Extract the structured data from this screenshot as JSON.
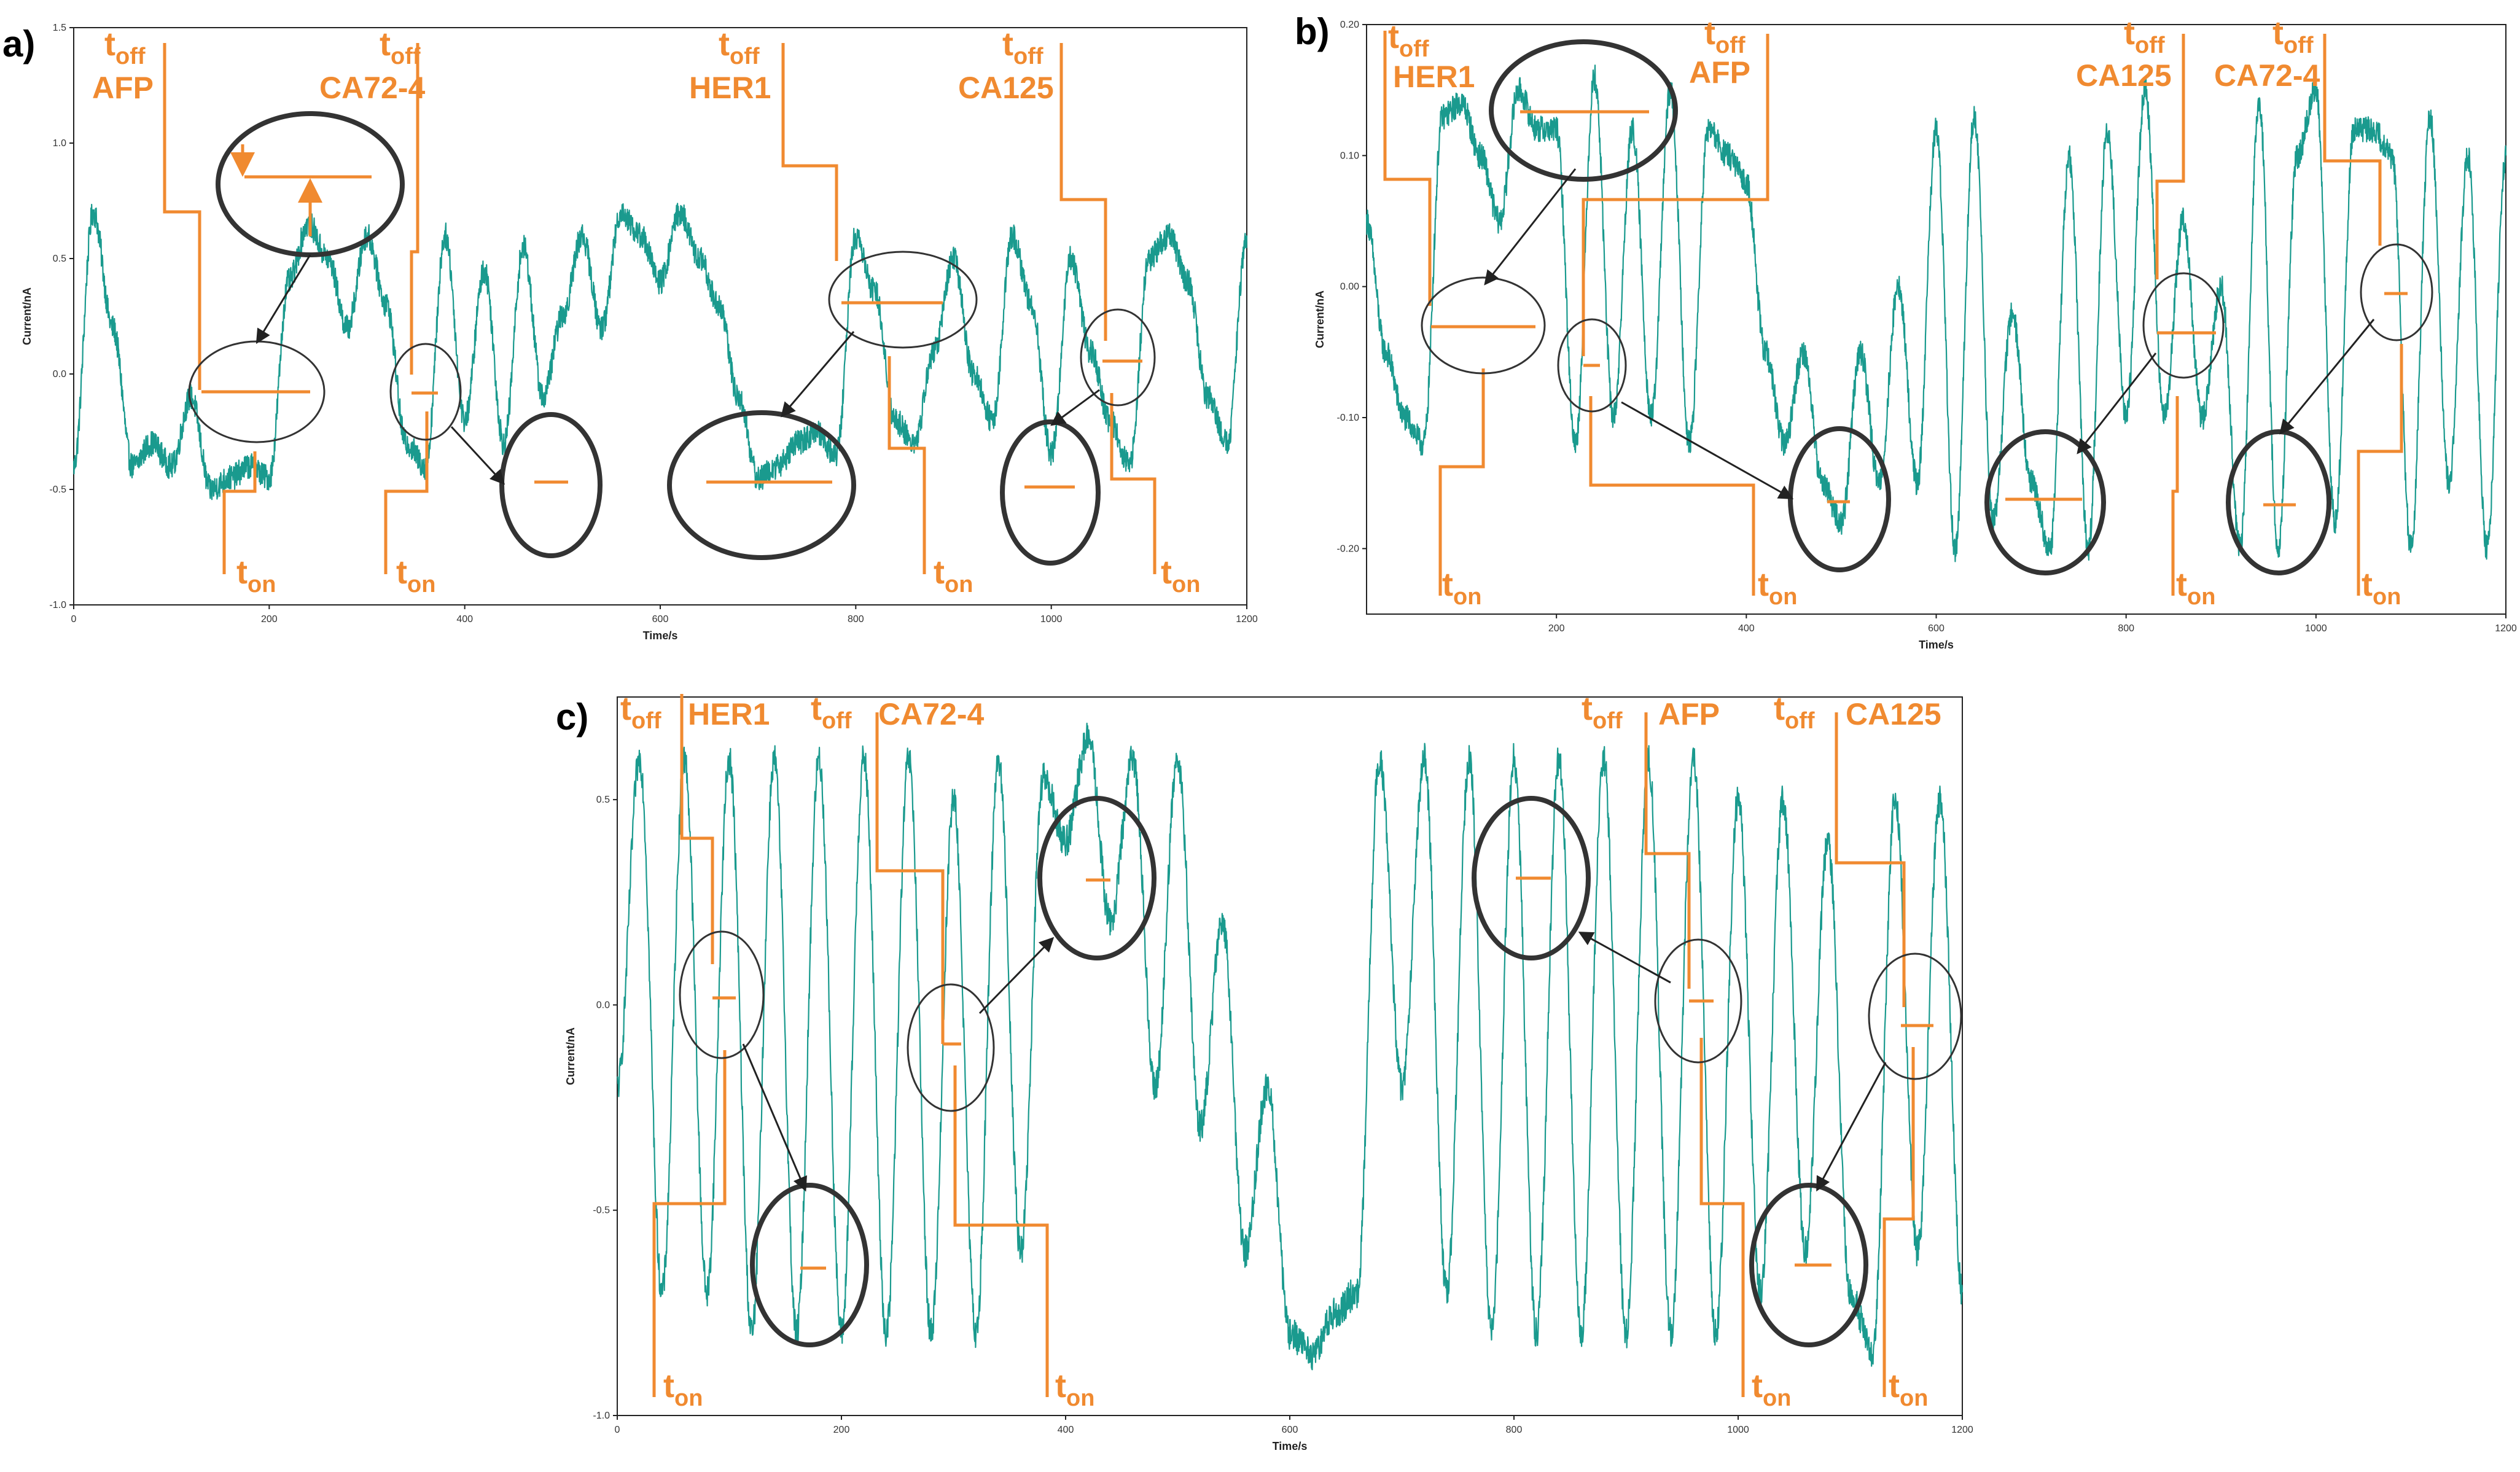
{
  "chart_data": [
    {
      "id": "a",
      "type": "line",
      "panel_label": "a)",
      "xlabel": "Time/s",
      "ylabel": "Current/nA",
      "xlim": [
        0,
        1200
      ],
      "ylim": [
        -1.0,
        1.5
      ],
      "xticks": [
        "0",
        "200",
        "400",
        "600",
        "800",
        "1000",
        "1200"
      ],
      "yticks": [
        "-1.0",
        "-0.5",
        "0.0",
        "0.5",
        "1.0",
        "1.5"
      ],
      "ytick_values": [
        -1.0,
        -0.5,
        0.0,
        0.5,
        1.0,
        1.5
      ],
      "xtick_values": [
        0,
        200,
        400,
        600,
        800,
        1000,
        1200
      ],
      "series": [
        {
          "name": "current",
          "color": "#1a9a8e",
          "x": [
            0,
            20,
            40,
            60,
            80,
            100,
            120,
            140,
            160,
            180,
            200,
            220,
            240,
            260,
            280,
            300,
            320,
            340,
            360,
            380,
            400,
            420,
            440,
            460,
            480,
            500,
            520,
            540,
            560,
            580,
            600,
            620,
            640,
            660,
            680,
            700,
            720,
            740,
            760,
            780,
            800,
            820,
            840,
            860,
            880,
            900,
            920,
            940,
            960,
            980,
            1000,
            1020,
            1040,
            1060,
            1080,
            1100,
            1120,
            1140,
            1160,
            1180,
            1200
          ],
          "y": [
            -0.4,
            0.7,
            0.2,
            -0.4,
            -0.3,
            -0.4,
            -0.1,
            -0.5,
            -0.45,
            -0.4,
            -0.45,
            0.4,
            0.65,
            0.5,
            0.2,
            0.6,
            0.3,
            -0.3,
            -0.4,
            0.6,
            -0.2,
            0.45,
            -0.3,
            0.55,
            -0.1,
            0.25,
            0.6,
            0.2,
            0.7,
            0.6,
            0.4,
            0.7,
            0.5,
            0.3,
            -0.1,
            -0.45,
            -0.4,
            -0.3,
            -0.25,
            -0.35,
            0.6,
            0.35,
            -0.2,
            -0.3,
            0.1,
            0.5,
            0.0,
            -0.2,
            0.6,
            0.3,
            -0.35,
            0.5,
            0.1,
            -0.2,
            -0.4,
            0.5,
            0.6,
            0.4,
            -0.1,
            -0.3,
            0.6
          ]
        }
      ],
      "annotations": [
        {
          "tag": "AFP",
          "t_off": "t",
          "t_off_sub": "off",
          "t_on": "t",
          "t_on_sub": "on"
        },
        {
          "tag": "CA72-4",
          "t_off": "t",
          "t_off_sub": "off",
          "t_on": "t",
          "t_on_sub": "on"
        },
        {
          "tag": "HER1",
          "t_off": "t",
          "t_off_sub": "off",
          "t_on": "t",
          "t_on_sub": "on"
        },
        {
          "tag": "CA125",
          "t_off": "t",
          "t_off_sub": "off",
          "t_on": "t",
          "t_on_sub": "on"
        }
      ]
    },
    {
      "id": "b",
      "type": "line",
      "panel_label": "b)",
      "xlabel": "Time/s",
      "ylabel": "Current/nA",
      "xlim": [
        0,
        1200
      ],
      "ylim": [
        -0.25,
        0.2
      ],
      "xticks": [
        "200",
        "400",
        "600",
        "800",
        "1000",
        "1200"
      ],
      "xtick_values": [
        200,
        400,
        600,
        800,
        1000,
        1200
      ],
      "yticks": [
        "-0.20",
        "-0.10",
        "0.00",
        "0.10",
        "0.20"
      ],
      "ytick_values": [
        -0.2,
        -0.1,
        0.0,
        0.1,
        0.2
      ],
      "series": [
        {
          "name": "current",
          "color": "#1a9a8e",
          "x": [
            0,
            20,
            40,
            60,
            80,
            100,
            120,
            140,
            160,
            180,
            200,
            220,
            240,
            260,
            280,
            300,
            320,
            340,
            360,
            380,
            400,
            420,
            440,
            460,
            480,
            500,
            520,
            540,
            560,
            580,
            600,
            620,
            640,
            660,
            680,
            700,
            720,
            740,
            760,
            780,
            800,
            820,
            840,
            860,
            880,
            900,
            920,
            940,
            960,
            980,
            1000,
            1020,
            1040,
            1060,
            1080,
            1100,
            1120,
            1140,
            1160,
            1180,
            1200
          ],
          "y": [
            0.05,
            -0.05,
            -0.1,
            -0.12,
            0.13,
            0.14,
            0.1,
            0.05,
            0.15,
            0.12,
            0.12,
            -0.12,
            0.16,
            -0.1,
            0.12,
            -0.1,
            0.15,
            -0.12,
            0.12,
            0.1,
            0.08,
            -0.05,
            -0.12,
            -0.05,
            -0.15,
            -0.18,
            -0.05,
            -0.15,
            0.0,
            -0.15,
            0.12,
            -0.2,
            0.13,
            -0.18,
            -0.02,
            -0.15,
            -0.2,
            0.1,
            -0.2,
            0.12,
            -0.1,
            0.15,
            -0.1,
            0.05,
            -0.1,
            0.0,
            -0.2,
            0.14,
            -0.2,
            0.1,
            0.15,
            -0.18,
            0.12,
            0.12,
            0.1,
            -0.2,
            0.13,
            -0.15,
            0.1,
            -0.2,
            0.1
          ]
        }
      ],
      "annotations": [
        {
          "tag": "HER1",
          "t_off": "t",
          "t_off_sub": "off",
          "t_on": "t",
          "t_on_sub": "on"
        },
        {
          "tag": "AFP",
          "t_off": "t",
          "t_off_sub": "off",
          "t_on": "t",
          "t_on_sub": "on"
        },
        {
          "tag": "CA125",
          "t_off": "t",
          "t_off_sub": "off",
          "t_on": "t",
          "t_on_sub": "on"
        },
        {
          "tag": "CA72-4",
          "t_off": "t",
          "t_off_sub": "off",
          "t_on": "t",
          "t_on_sub": "on"
        }
      ]
    },
    {
      "id": "c",
      "type": "line",
      "panel_label": "c)",
      "xlabel": "Time/s",
      "ylabel": "Current/nA",
      "xlim": [
        0,
        1200
      ],
      "ylim": [
        -1.0,
        0.75
      ],
      "xticks": [
        "0",
        "200",
        "400",
        "600",
        "800",
        "1000",
        "1200"
      ],
      "xtick_values": [
        0,
        200,
        400,
        600,
        800,
        1000,
        1200
      ],
      "yticks": [
        "-1.0",
        "-0.5",
        "0.0",
        "0.5"
      ],
      "ytick_values": [
        -1.0,
        -0.5,
        0.0,
        0.5
      ],
      "series": [
        {
          "name": "current",
          "color": "#1a9a8e",
          "x": [
            0,
            20,
            40,
            60,
            80,
            100,
            120,
            140,
            160,
            180,
            200,
            220,
            240,
            260,
            280,
            300,
            320,
            340,
            360,
            380,
            400,
            420,
            440,
            460,
            480,
            500,
            520,
            540,
            560,
            580,
            600,
            620,
            640,
            660,
            680,
            700,
            720,
            740,
            760,
            780,
            800,
            820,
            840,
            860,
            880,
            900,
            920,
            940,
            960,
            980,
            1000,
            1020,
            1040,
            1060,
            1080,
            1100,
            1120,
            1140,
            1160,
            1180,
            1200
          ],
          "y": [
            -0.2,
            0.6,
            -0.7,
            0.6,
            -0.7,
            0.6,
            -0.8,
            0.6,
            -0.8,
            0.6,
            -0.8,
            0.6,
            -0.8,
            0.6,
            -0.8,
            0.5,
            -0.8,
            0.6,
            -0.6,
            0.55,
            0.4,
            0.65,
            0.2,
            0.6,
            -0.2,
            0.6,
            -0.3,
            0.2,
            -0.6,
            -0.2,
            -0.8,
            -0.85,
            -0.75,
            -0.7,
            0.6,
            -0.2,
            0.6,
            -0.7,
            0.6,
            -0.8,
            0.6,
            -0.8,
            0.6,
            -0.8,
            0.6,
            -0.8,
            0.6,
            -0.8,
            0.6,
            -0.8,
            0.5,
            -0.7,
            0.5,
            -0.6,
            0.4,
            -0.7,
            -0.85,
            0.5,
            -0.6,
            0.5,
            -0.7
          ]
        }
      ],
      "annotations": [
        {
          "tag": "HER1",
          "t_off": "t",
          "t_off_sub": "off",
          "t_on": "t",
          "t_on_sub": "on"
        },
        {
          "tag": "CA72-4",
          "t_off": "t",
          "t_off_sub": "off",
          "t_on": "t",
          "t_on_sub": "on"
        },
        {
          "tag": "AFP",
          "t_off": "t",
          "t_off_sub": "off",
          "t_on": "t",
          "t_on_sub": "on"
        },
        {
          "tag": "CA125",
          "t_off": "t",
          "t_off_sub": "off",
          "t_on": "t",
          "t_on_sub": "on"
        }
      ]
    }
  ],
  "colors": {
    "trace": "#1a9a8e",
    "annotation": "#f08a30",
    "axis": "#333333",
    "circle": "#333333"
  }
}
